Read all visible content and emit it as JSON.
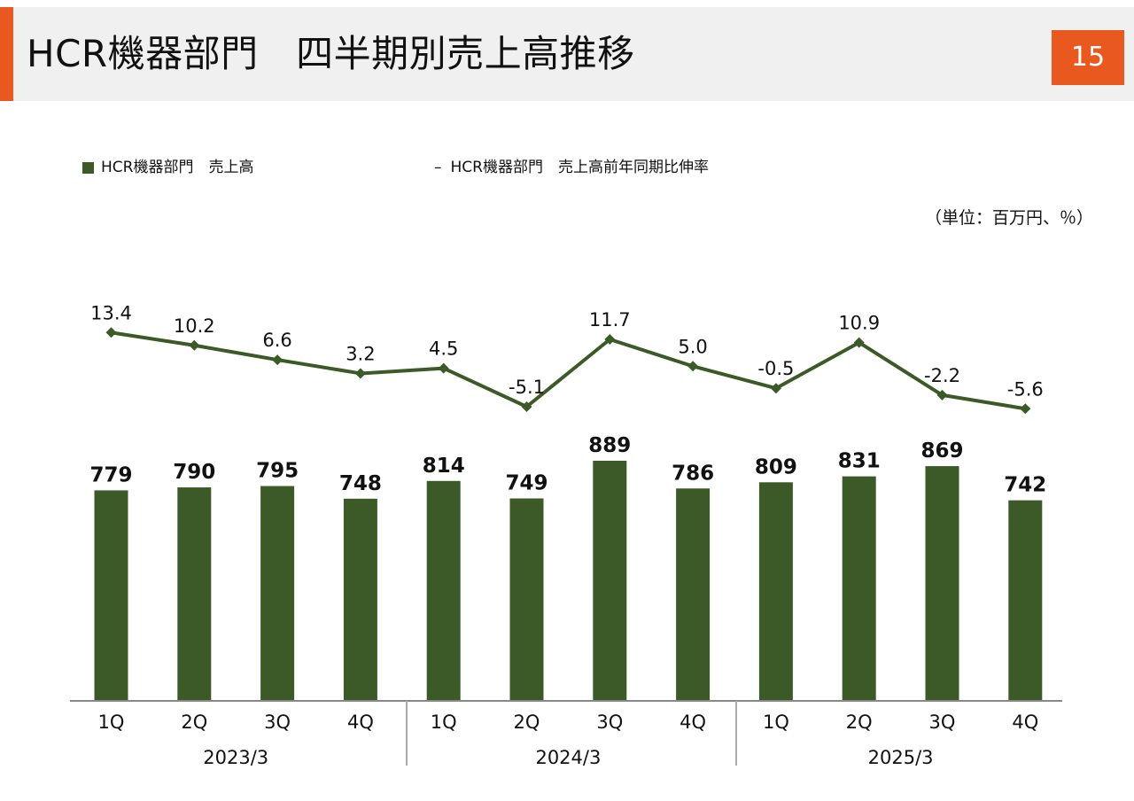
{
  "header": {
    "title": "HCR機器部門　四半期別売上高推移",
    "page_number": "15"
  },
  "colors": {
    "accent": "#e8581f",
    "bar": "#3b5a27",
    "line": "#3b5a27",
    "header_bg": "#f0f0f0"
  },
  "unit_note": "（単位：百万円、％）",
  "chart_data": {
    "type": "bar",
    "categories": [
      "1Q",
      "2Q",
      "3Q",
      "4Q",
      "1Q",
      "2Q",
      "3Q",
      "4Q",
      "1Q",
      "2Q",
      "3Q",
      "4Q"
    ],
    "groups": [
      {
        "label": "2023/3",
        "quarters": 4
      },
      {
        "label": "2024/3",
        "quarters": 4
      },
      {
        "label": "2025/3",
        "quarters": 4
      }
    ],
    "series": [
      {
        "name": "HCR機器部門　売上高",
        "type": "bar",
        "values": [
          779,
          790,
          795,
          748,
          814,
          749,
          889,
          786,
          809,
          831,
          869,
          742
        ],
        "labels": [
          "779",
          "790",
          "795",
          "748",
          "814",
          "749",
          "889",
          "786",
          "809",
          "831",
          "869",
          "742"
        ]
      },
      {
        "name": "HCR機器部門　売上高前年同期比伸率",
        "type": "line",
        "marker": "diamond",
        "values": [
          13.4,
          10.2,
          6.6,
          3.2,
          4.5,
          -5.1,
          11.7,
          5.0,
          -0.5,
          10.9,
          -2.2,
          -5.6
        ],
        "labels": [
          "13.4",
          "10.2",
          "6.6",
          "3.2",
          "4.5",
          "-5.1",
          "11.7",
          "5.0",
          "-0.5",
          "10.9",
          "-2.2",
          "-5.6"
        ]
      }
    ],
    "legend_position": "top",
    "grid": false
  }
}
